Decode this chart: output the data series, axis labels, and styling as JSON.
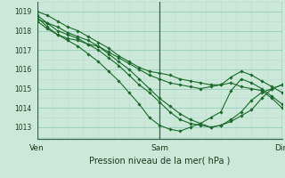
{
  "bg_color": "#cce8d8",
  "grid_color_major": "#99ccbb",
  "grid_color_minor": "#bbddd0",
  "line_color": "#1a6b2a",
  "marker_color": "#1a6b2a",
  "title": "Pression niveau de la mer( hPa )",
  "xtick_labels": [
    "Ven",
    "Sam",
    "Dim"
  ],
  "xtick_positions": [
    0,
    24,
    48
  ],
  "xlim": [
    0,
    48
  ],
  "ylim": [
    1012.4,
    1019.5
  ],
  "yticks": [
    1013,
    1014,
    1015,
    1016,
    1017,
    1018,
    1019
  ],
  "series": [
    {
      "x": [
        0,
        2,
        4,
        6,
        8,
        10,
        12,
        14,
        16,
        18,
        20,
        22,
        24,
        26,
        28,
        30,
        32,
        34,
        36,
        38,
        40,
        42,
        44,
        46,
        48
      ],
      "y": [
        1019.0,
        1018.8,
        1018.5,
        1018.2,
        1018.0,
        1017.7,
        1017.4,
        1017.1,
        1016.7,
        1016.4,
        1016.1,
        1015.9,
        1015.8,
        1015.7,
        1015.5,
        1015.4,
        1015.3,
        1015.2,
        1015.2,
        1015.3,
        1015.1,
        1015.0,
        1014.9,
        1014.5,
        1014.0
      ]
    },
    {
      "x": [
        0,
        2,
        4,
        6,
        8,
        10,
        12,
        14,
        16,
        18,
        20,
        22,
        24,
        26,
        28,
        30,
        32,
        34,
        36,
        38,
        40,
        42,
        44,
        46,
        48
      ],
      "y": [
        1018.8,
        1018.4,
        1018.0,
        1017.8,
        1017.6,
        1017.3,
        1017.0,
        1016.6,
        1016.2,
        1015.7,
        1015.2,
        1014.8,
        1014.3,
        1013.8,
        1013.4,
        1013.2,
        1013.1,
        1013.0,
        1013.1,
        1013.3,
        1013.6,
        1013.9,
        1014.5,
        1015.0,
        1015.2
      ]
    },
    {
      "x": [
        0,
        2,
        4,
        6,
        8,
        10,
        12,
        14,
        16,
        18,
        20,
        22,
        24,
        26,
        28,
        30,
        32,
        34,
        36,
        38,
        40,
        42,
        44,
        46,
        48
      ],
      "y": [
        1018.6,
        1018.4,
        1018.2,
        1017.9,
        1017.7,
        1017.5,
        1017.2,
        1016.9,
        1016.6,
        1016.3,
        1016.0,
        1015.7,
        1015.5,
        1015.3,
        1015.2,
        1015.1,
        1015.0,
        1015.1,
        1015.2,
        1015.6,
        1015.9,
        1015.7,
        1015.4,
        1015.1,
        1014.8
      ]
    },
    {
      "x": [
        0,
        2,
        4,
        6,
        8,
        10,
        12,
        14,
        16,
        18,
        20,
        22,
        24,
        26,
        28,
        30,
        32,
        34,
        36,
        38,
        40,
        42,
        44,
        46,
        48
      ],
      "y": [
        1018.7,
        1018.2,
        1017.8,
        1017.5,
        1017.2,
        1016.8,
        1016.4,
        1015.9,
        1015.4,
        1014.8,
        1014.2,
        1013.5,
        1013.1,
        1012.9,
        1012.8,
        1013.0,
        1013.2,
        1013.5,
        1013.8,
        1014.9,
        1015.5,
        1015.3,
        1015.0,
        1014.6,
        1014.2
      ]
    },
    {
      "x": [
        0,
        2,
        4,
        6,
        8,
        10,
        12,
        14,
        16,
        18,
        20,
        22,
        24,
        26,
        28,
        30,
        32,
        34,
        36,
        38,
        40,
        42,
        44,
        46,
        48
      ],
      "y": [
        1018.5,
        1018.1,
        1017.8,
        1017.6,
        1017.5,
        1017.3,
        1017.2,
        1016.8,
        1016.4,
        1016.0,
        1015.5,
        1015.0,
        1014.5,
        1014.1,
        1013.7,
        1013.4,
        1013.2,
        1013.0,
        1013.1,
        1013.4,
        1013.8,
        1014.4,
        1014.8,
        1015.0,
        1015.2
      ]
    }
  ]
}
